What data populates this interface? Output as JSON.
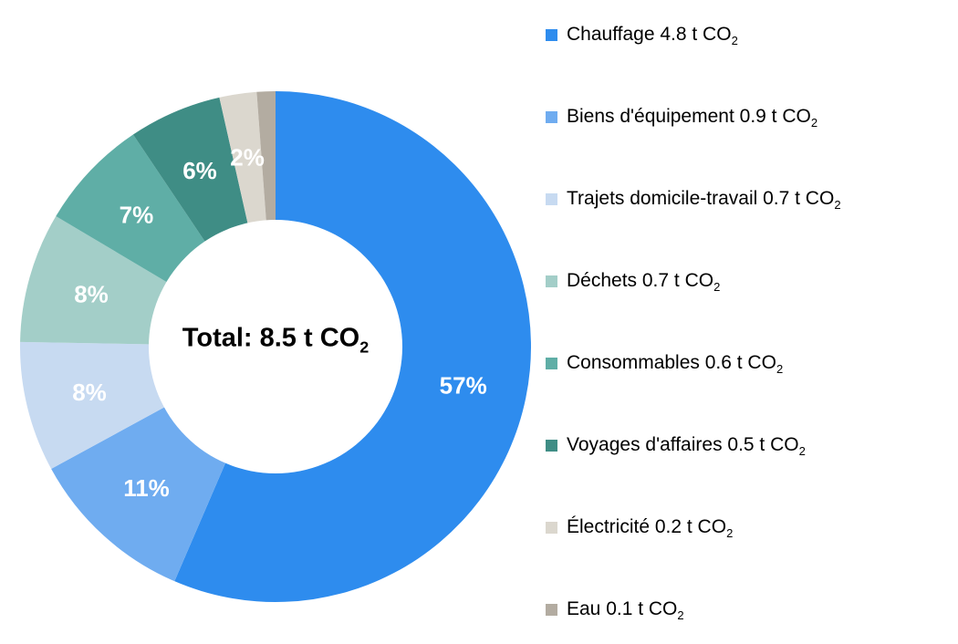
{
  "layout": {
    "background": "#FFFFFF",
    "percent_label_color": "#FFFFFF",
    "center_label_color": "#000000",
    "legend_text_color": "#000000"
  },
  "chart_data": {
    "type": "pie",
    "subtype": "donut",
    "center_label": {
      "text": "Total: 8.5 t CO",
      "subscript": "2"
    },
    "total": 8.5,
    "unit": "t CO2",
    "start_angle_deg": 0,
    "direction": "clockwise",
    "inner_radius_ratio": 0.5,
    "legend_position": "right",
    "slices": [
      {
        "label": "Chauffage",
        "value": 4.8,
        "percent": 57,
        "percent_label": "57%",
        "color": "#2E8CEE",
        "legend_text": "Chauffage 4.8 t CO"
      },
      {
        "label": "Biens d'équipement",
        "value": 0.9,
        "percent": 11,
        "percent_label": "11%",
        "color": "#6FACF0",
        "legend_text": "Biens d'équipement 0.9 t CO"
      },
      {
        "label": "Trajets domicile-travail",
        "value": 0.7,
        "percent": 8,
        "percent_label": "8%",
        "color": "#C7DAF1",
        "legend_text": "Trajets domicile-travail 0.7 t CO"
      },
      {
        "label": "Déchets",
        "value": 0.7,
        "percent": 8,
        "percent_label": "8%",
        "color": "#A3CEC8",
        "legend_text": "Déchets 0.7 t CO"
      },
      {
        "label": "Consommables",
        "value": 0.6,
        "percent": 7,
        "percent_label": "7%",
        "color": "#5FAEA6",
        "legend_text": "Consommables 0.6 t CO"
      },
      {
        "label": "Voyages d'affaires",
        "value": 0.5,
        "percent": 6,
        "percent_label": "6%",
        "color": "#3F8D85",
        "legend_text": "Voyages d'affaires 0.5 t CO"
      },
      {
        "label": "Électricité",
        "value": 0.2,
        "percent": 2,
        "percent_label": "2%",
        "color": "#DBD7CE",
        "legend_text": "Électricité 0.2 t CO"
      },
      {
        "label": "Eau",
        "value": 0.1,
        "percent": 1,
        "percent_label": "",
        "color": "#B3ACA1",
        "legend_text": "Eau 0.1 t CO"
      }
    ]
  }
}
